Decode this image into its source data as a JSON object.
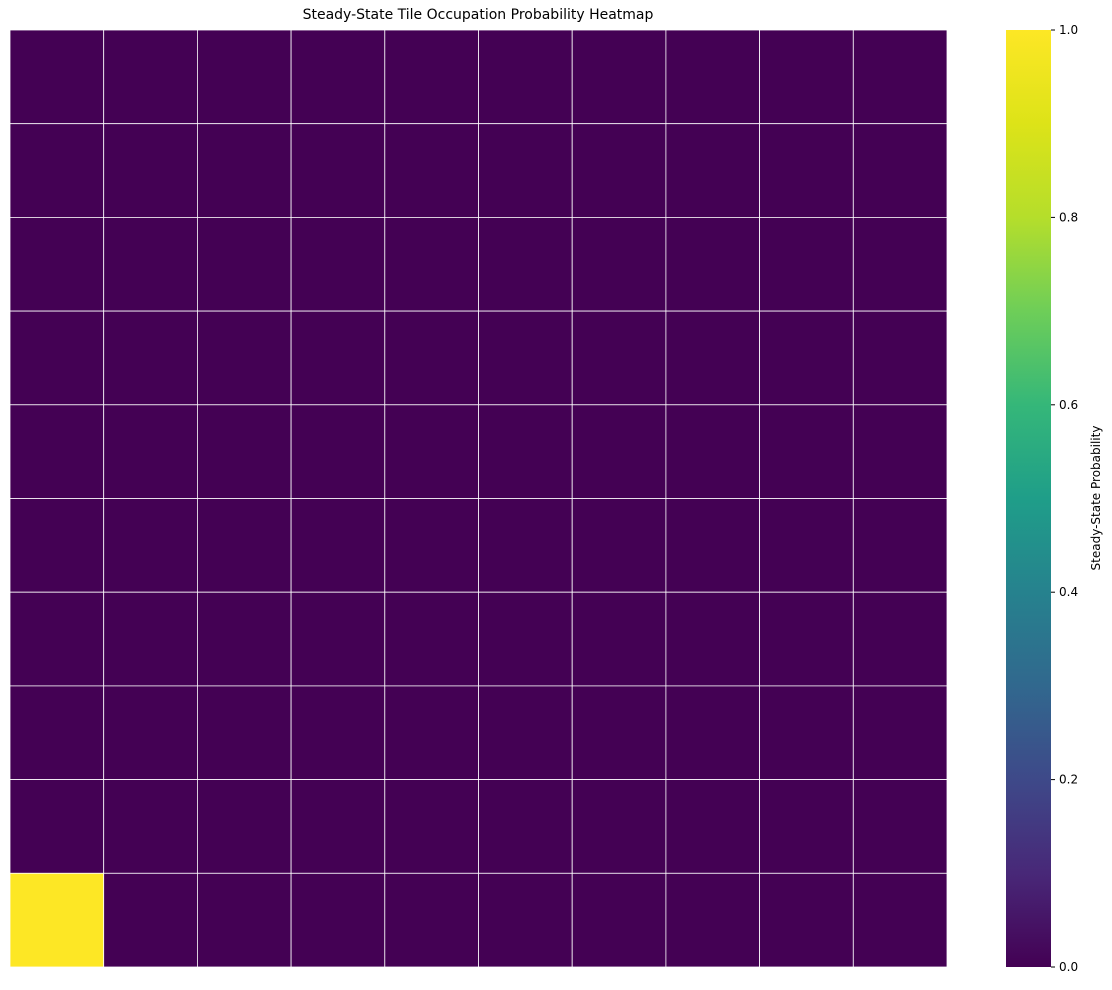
{
  "chart_data": {
    "type": "heatmap",
    "title": "Steady-State Tile Occupation Probability Heatmap",
    "rows": 10,
    "cols": 10,
    "values": [
      [
        0,
        0,
        0,
        0,
        0,
        0,
        0,
        0,
        0,
        0
      ],
      [
        0,
        0,
        0,
        0,
        0,
        0,
        0,
        0,
        0,
        0
      ],
      [
        0,
        0,
        0,
        0,
        0,
        0,
        0,
        0,
        0,
        0
      ],
      [
        0,
        0,
        0,
        0,
        0,
        0,
        0,
        0,
        0,
        0
      ],
      [
        0,
        0,
        0,
        0,
        0,
        0,
        0,
        0,
        0,
        0
      ],
      [
        0,
        0,
        0,
        0,
        0,
        0,
        0,
        0,
        0,
        0
      ],
      [
        0,
        0,
        0,
        0,
        0,
        0,
        0,
        0,
        0,
        0
      ],
      [
        0,
        0,
        0,
        0,
        0,
        0,
        0,
        0,
        0,
        0
      ],
      [
        0,
        0,
        0,
        0,
        0,
        0,
        0,
        0,
        0,
        0
      ],
      [
        1,
        0,
        0,
        0,
        0,
        0,
        0,
        0,
        0,
        0
      ]
    ],
    "vmin": 0,
    "vmax": 1,
    "colormap": "viridis",
    "cell_border_color": "#ffffff",
    "colorbar": {
      "label": "Steady-State Probability",
      "ticks": [
        "0.0",
        "0.2",
        "0.4",
        "0.6",
        "0.8",
        "1.0"
      ]
    },
    "grid": true,
    "legend_placement": "right"
  }
}
